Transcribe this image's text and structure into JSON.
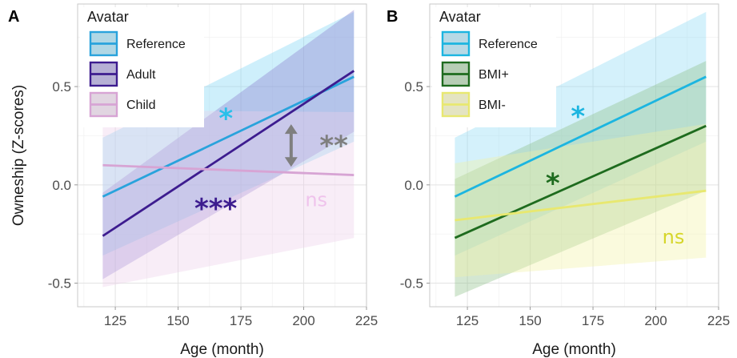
{
  "chart_data": [
    {
      "type": "line",
      "panel_label": "A",
      "xlabel": "Age (month)",
      "ylabel": "Owneship (Z-scores)",
      "xlim": [
        110,
        225
      ],
      "ylim": [
        -0.62,
        0.92
      ],
      "xticks": [
        125,
        150,
        175,
        200,
        225
      ],
      "yticks": [
        -0.5,
        0.0,
        0.5
      ],
      "ytick_labels": [
        "-0.5",
        "0.0",
        "0.5"
      ],
      "grid": true,
      "legend": {
        "title": "Avatar",
        "position": "top-left",
        "entries": [
          "Reference",
          "Adult",
          "Child"
        ]
      },
      "series": [
        {
          "name": "Reference",
          "color": "#29a3dc",
          "band_color": "#7fd4f5",
          "x": [
            120,
            220
          ],
          "y": [
            -0.06,
            0.55
          ],
          "ci_lower": [
            -0.36,
            0.22
          ],
          "ci_upper": [
            0.24,
            0.88
          ]
        },
        {
          "name": "Adult",
          "color": "#3d1c8f",
          "band_color": "#8b7fd0",
          "x": [
            120,
            220
          ],
          "y": [
            -0.26,
            0.58
          ],
          "ci_lower": [
            -0.48,
            0.27
          ],
          "ci_upper": [
            -0.04,
            0.89
          ]
        },
        {
          "name": "Child",
          "color": "#d7a4d4",
          "band_color": "#ecd0ea",
          "x": [
            120,
            220
          ],
          "y": [
            0.1,
            0.05
          ],
          "ci_lower": [
            -0.52,
            -0.27
          ],
          "ci_upper": [
            0.38,
            0.37
          ]
        }
      ],
      "annotations": [
        {
          "text": "*",
          "x": 169,
          "y": 0.33,
          "color": "#29c0ea",
          "size": 34
        },
        {
          "text": "***",
          "x": 165,
          "y": -0.13,
          "color": "#3d1c8f",
          "size": 34
        },
        {
          "text": "ns",
          "x": 205,
          "y": -0.08,
          "color": "#efc3ec",
          "size": 24
        },
        {
          "text": "**",
          "x": 212,
          "y": 0.19,
          "color": "#7f7f7f",
          "size": 34
        }
      ],
      "arrow": {
        "x": 195,
        "y_top": 0.3,
        "y_bottom": 0.1,
        "color": "#7f7f7f"
      }
    },
    {
      "type": "line",
      "panel_label": "B",
      "xlabel": "Age (month)",
      "ylabel": "",
      "xlim": [
        110,
        225
      ],
      "ylim": [
        -0.62,
        0.92
      ],
      "xticks": [
        125,
        150,
        175,
        200,
        225
      ],
      "yticks": [
        -0.5,
        0.0,
        0.5
      ],
      "ytick_labels": [
        "-0.5",
        "0.0",
        "0.5"
      ],
      "grid": true,
      "legend": {
        "title": "Avatar",
        "position": "top-left",
        "entries": [
          "Reference",
          "BMI+",
          "BMI-"
        ]
      },
      "series": [
        {
          "name": "Reference",
          "color": "#1cb5e0",
          "band_color": "#8fdaf5",
          "x": [
            120,
            220
          ],
          "y": [
            -0.06,
            0.55
          ],
          "ci_lower": [
            -0.36,
            0.22
          ],
          "ci_upper": [
            0.24,
            0.88
          ]
        },
        {
          "name": "BMI+",
          "color": "#1e6b1e",
          "band_color": "#8fc08a",
          "x": [
            120,
            220
          ],
          "y": [
            -0.27,
            0.3
          ],
          "ci_lower": [
            -0.57,
            -0.03
          ],
          "ci_upper": [
            0.03,
            0.63
          ]
        },
        {
          "name": "BMI-",
          "color": "#e8e870",
          "band_color": "#f2f2a6",
          "x": [
            120,
            220
          ],
          "y": [
            -0.18,
            -0.03
          ],
          "ci_lower": [
            -0.47,
            -0.37
          ],
          "ci_upper": [
            0.11,
            0.31
          ]
        }
      ],
      "annotations": [
        {
          "text": "*",
          "x": 169,
          "y": 0.34,
          "color": "#1cb5e0",
          "size": 34
        },
        {
          "text": "*",
          "x": 159,
          "y": 0.0,
          "color": "#1e6b1e",
          "size": 34
        },
        {
          "text": "ns",
          "x": 207,
          "y": -0.27,
          "color": "#d6d62a",
          "size": 24
        }
      ]
    }
  ]
}
